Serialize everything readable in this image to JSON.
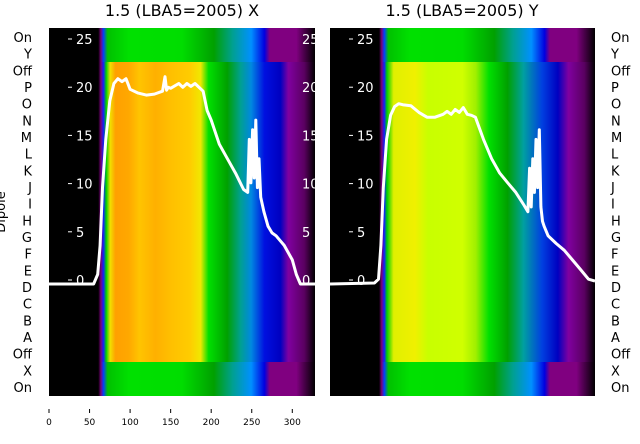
{
  "chart_data": [
    {
      "type": "heatmap",
      "title": "1.5 (LBA5=2005) X",
      "ylabel": "Dipole",
      "row_labels": [
        "On",
        "Y",
        "Off",
        "P",
        "O",
        "N",
        "M",
        "L",
        "K",
        "J",
        "I",
        "H",
        "G",
        "F",
        "E",
        "D",
        "C",
        "B",
        "A",
        "Off",
        "X",
        "On"
      ],
      "xticks": [
        "0",
        "50",
        "100",
        "150",
        "200",
        "250",
        "300"
      ],
      "xlim": [
        0,
        328
      ],
      "overlay_yticks": [
        "25",
        "20",
        "15",
        "10",
        "5",
        "0"
      ],
      "overlay_ylim": [
        0,
        25
      ],
      "overlay_line": {
        "x": [
          0,
          55,
          60,
          63,
          66,
          70,
          75,
          80,
          85,
          90,
          95,
          100,
          110,
          120,
          130,
          140,
          143,
          145,
          147,
          150,
          160,
          165,
          170,
          175,
          180,
          190,
          195,
          200,
          210,
          220,
          230,
          240,
          245,
          247,
          249,
          251,
          253,
          255,
          257,
          259,
          261,
          265,
          270,
          275,
          280,
          285,
          290,
          300,
          305,
          310,
          328
        ],
        "y": [
          0,
          0,
          1,
          4,
          10,
          15,
          19,
          20.8,
          21.3,
          21,
          21.3,
          20.2,
          19.8,
          19.6,
          19.7,
          20,
          21.5,
          20.1,
          20.4,
          20.3,
          20.8,
          20.4,
          20.8,
          20.5,
          20.8,
          20,
          18,
          17,
          14.5,
          13,
          11.5,
          9.8,
          9.5,
          15,
          10.5,
          16,
          11,
          17,
          10,
          13,
          9,
          7.5,
          6,
          5.3,
          5,
          4.5,
          4,
          2.5,
          1,
          0,
          0
        ]
      }
    },
    {
      "type": "heatmap",
      "title": "1.5 (LBA5=2005) Y",
      "row_labels": [
        "On",
        "Y",
        "Off",
        "P",
        "O",
        "N",
        "M",
        "L",
        "K",
        "J",
        "I",
        "H",
        "G",
        "F",
        "E",
        "D",
        "C",
        "B",
        "A",
        "Off",
        "X",
        "On"
      ],
      "xlim": [
        0,
        328
      ],
      "overlay_yticks": [
        "25",
        "20",
        "15",
        "10",
        "5",
        "0"
      ],
      "overlay_ylim": [
        0,
        25
      ],
      "overlay_line": {
        "x": [
          0,
          55,
          60,
          63,
          66,
          70,
          75,
          80,
          85,
          90,
          100,
          110,
          120,
          130,
          140,
          145,
          150,
          155,
          160,
          165,
          170,
          175,
          180,
          190,
          200,
          210,
          220,
          230,
          240,
          245,
          247,
          249,
          251,
          253,
          255,
          257,
          259,
          261,
          263,
          265,
          270,
          280,
          290,
          300,
          310,
          320,
          328
        ],
        "y": [
          0,
          0.1,
          0.5,
          4,
          10,
          15,
          17.5,
          18.4,
          18.7,
          18.6,
          18.5,
          17.8,
          17.3,
          17.3,
          17.6,
          17.9,
          17.6,
          18.1,
          17.8,
          18.3,
          17.6,
          17.5,
          17.3,
          15,
          13,
          11.5,
          10.5,
          9.5,
          8.2,
          7.5,
          12,
          8,
          13,
          9.5,
          15,
          10,
          16,
          8,
          6.5,
          6,
          5,
          4.2,
          3.5,
          2.5,
          1.5,
          0.5,
          0.3
        ]
      }
    }
  ]
}
